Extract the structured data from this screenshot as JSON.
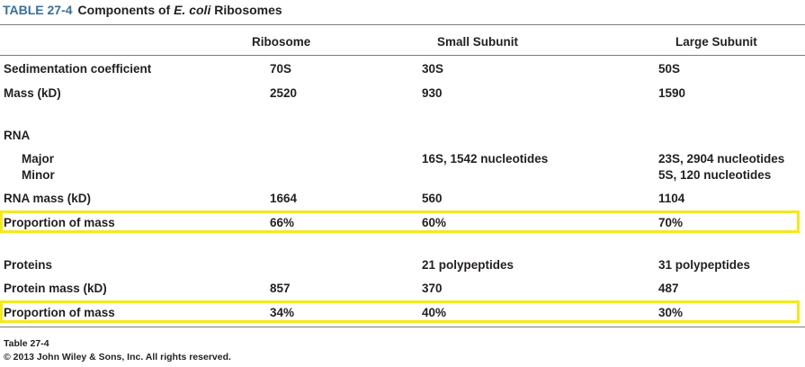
{
  "title": {
    "table_number": "TABLE 27-4",
    "text_before": "Components of ",
    "text_italic": "E. coli",
    "text_after": " Ribosomes"
  },
  "headers": [
    "Ribosome",
    "Small Subunit",
    "Large Subunit"
  ],
  "rows": {
    "sedimentation": {
      "label": "Sedimentation coefficient",
      "ribosome": "70S",
      "small": "30S",
      "large": "50S"
    },
    "mass": {
      "label": "Mass (kD)",
      "ribosome": "2520",
      "small": "930",
      "large": "1590"
    },
    "rna_heading": {
      "label": "RNA"
    },
    "rna_major": {
      "label": "Major",
      "small": "16S, 1542 nucleotides",
      "large": "23S, 2904 nucleotides"
    },
    "rna_minor": {
      "label": "Minor",
      "large": "5S, 120 nucleotides"
    },
    "rna_mass": {
      "label": "RNA mass (kD)",
      "ribosome": "1664",
      "small": "560",
      "large": "1104"
    },
    "rna_proportion": {
      "label": "Proportion of mass",
      "ribosome": "66%",
      "small": "60%",
      "large": "70%"
    },
    "proteins": {
      "label": "Proteins",
      "small": "21 polypeptides",
      "large": "31 polypeptides"
    },
    "protein_mass": {
      "label": "Protein mass (kD)",
      "ribosome": "857",
      "small": "370",
      "large": "487"
    },
    "protein_proportion": {
      "label": "Proportion of mass",
      "ribosome": "34%",
      "small": "40%",
      "large": "30%"
    }
  },
  "footer": {
    "line1": "Table 27-4",
    "line2": "© 2013 John Wiley & Sons, Inc. All rights reserved."
  },
  "colors": {
    "highlight": "#f2ea1c",
    "table_number": "#3a6f9a"
  }
}
